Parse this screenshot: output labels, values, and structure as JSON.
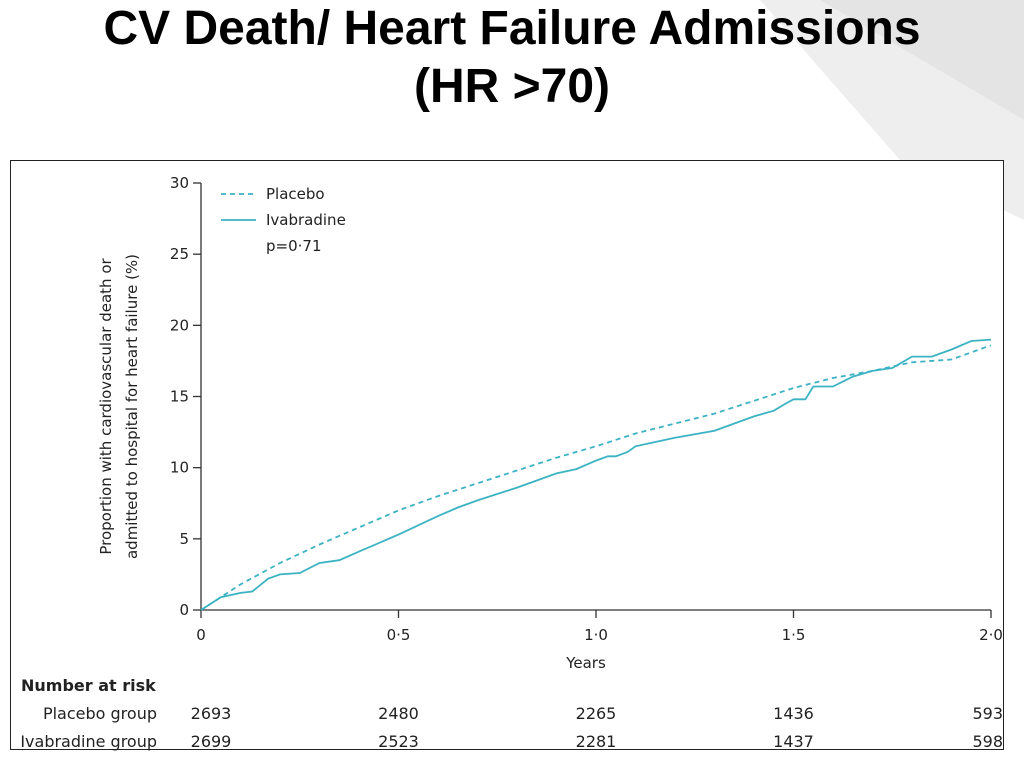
{
  "slide": {
    "title_line1": "CV Death/ Heart Failure Admissions",
    "title_line2": "(HR >70)"
  },
  "colors": {
    "series": "#3bb3c3",
    "axis": "#333333",
    "text": "#222222"
  },
  "chart_data": {
    "type": "line",
    "title": "",
    "xlabel": "Years",
    "ylabel_line1": "Proportion with cardiovascular death or",
    "ylabel_line2": "admitted to hospital for heart failure (%)",
    "xlim": [
      0,
      2.0
    ],
    "ylim": [
      0,
      30
    ],
    "x_ticks": [
      0,
      0.5,
      1.0,
      1.5,
      2.0
    ],
    "x_tick_labels": [
      "0",
      "0·5",
      "1·0",
      "1·5",
      "2·0"
    ],
    "y_ticks": [
      0,
      5,
      10,
      15,
      20,
      25,
      30
    ],
    "y_tick_labels": [
      "0",
      "5",
      "10",
      "15",
      "20",
      "25",
      "30"
    ],
    "grid": false,
    "legend_placement": "top-left",
    "p_value_text": "p=0·71",
    "series": [
      {
        "name": "Placebo",
        "style": "dashed",
        "x": [
          0,
          0.1,
          0.2,
          0.3,
          0.4,
          0.5,
          0.6,
          0.7,
          0.8,
          0.9,
          1.0,
          1.1,
          1.2,
          1.3,
          1.4,
          1.5,
          1.6,
          1.7,
          1.8,
          1.9,
          2.0
        ],
        "y": [
          0,
          1.8,
          3.3,
          4.6,
          5.8,
          7.0,
          8.0,
          8.9,
          9.8,
          10.7,
          11.5,
          12.4,
          13.1,
          13.8,
          14.7,
          15.6,
          16.3,
          16.8,
          17.4,
          17.6,
          18.6
        ]
      },
      {
        "name": "Ivabradine",
        "style": "solid",
        "x": [
          0,
          0.05,
          0.1,
          0.13,
          0.17,
          0.2,
          0.25,
          0.3,
          0.35,
          0.4,
          0.5,
          0.6,
          0.65,
          0.7,
          0.8,
          0.85,
          0.9,
          0.95,
          1.0,
          1.03,
          1.05,
          1.08,
          1.1,
          1.15,
          1.2,
          1.3,
          1.35,
          1.4,
          1.45,
          1.48,
          1.5,
          1.53,
          1.55,
          1.6,
          1.65,
          1.7,
          1.75,
          1.8,
          1.85,
          1.9,
          1.95,
          2.0
        ],
        "y": [
          0,
          0.9,
          1.2,
          1.3,
          2.2,
          2.5,
          2.6,
          3.3,
          3.5,
          4.1,
          5.3,
          6.6,
          7.2,
          7.7,
          8.6,
          9.1,
          9.6,
          9.9,
          10.5,
          10.8,
          10.8,
          11.1,
          11.5,
          11.8,
          12.1,
          12.6,
          13.1,
          13.6,
          14.0,
          14.5,
          14.8,
          14.8,
          15.7,
          15.7,
          16.4,
          16.8,
          17.0,
          17.8,
          17.8,
          18.3,
          18.9,
          19.0
        ]
      }
    ],
    "risk_table": {
      "title": "Number at risk",
      "times": [
        0,
        0.5,
        1.0,
        1.5,
        2.0
      ],
      "rows": [
        {
          "label": "Placebo group",
          "values": [
            "2693",
            "2480",
            "2265",
            "1436",
            "593"
          ]
        },
        {
          "label": "Ivabradine group",
          "values": [
            "2699",
            "2523",
            "2281",
            "1437",
            "598"
          ]
        }
      ]
    }
  }
}
